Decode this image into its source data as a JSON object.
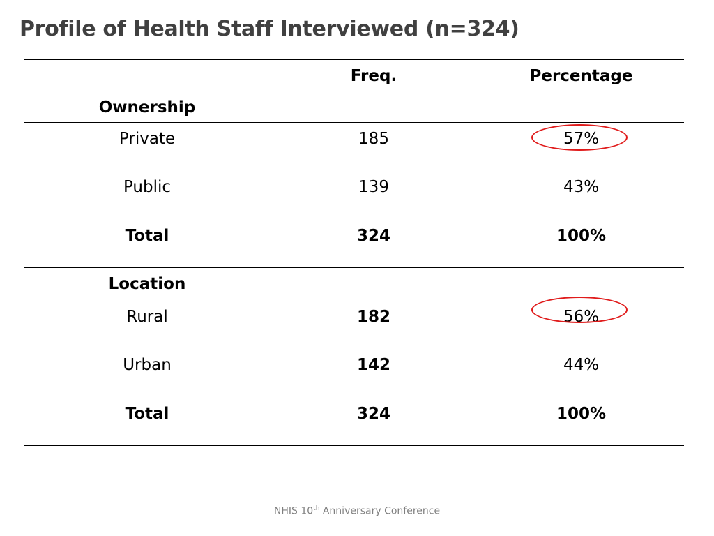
{
  "slide": {
    "title": "Profile of Health Staff Interviewed (n=324)"
  },
  "table": {
    "headers": {
      "freq": "Freq.",
      "percentage": "Percentage"
    },
    "sections": [
      {
        "heading": "Ownership",
        "rows": [
          {
            "label": "Private",
            "freq": "185",
            "pct": "57%"
          },
          {
            "label": "Public",
            "freq": "139",
            "pct": "43%"
          },
          {
            "label": "Total",
            "freq": "324",
            "pct": "100%"
          }
        ]
      },
      {
        "heading": "Location",
        "rows": [
          {
            "label": "Rural",
            "freq": "182",
            "pct": "56%"
          },
          {
            "label": "Urban",
            "freq": "142",
            "pct": "44%"
          },
          {
            "label": "Total",
            "freq": "324",
            "pct": "100%"
          }
        ]
      }
    ]
  },
  "highlight_color": "#e01b1b",
  "footer": {
    "prefix": "NHIS 10",
    "superscript": "th",
    "suffix": " Anniversary Conference"
  }
}
